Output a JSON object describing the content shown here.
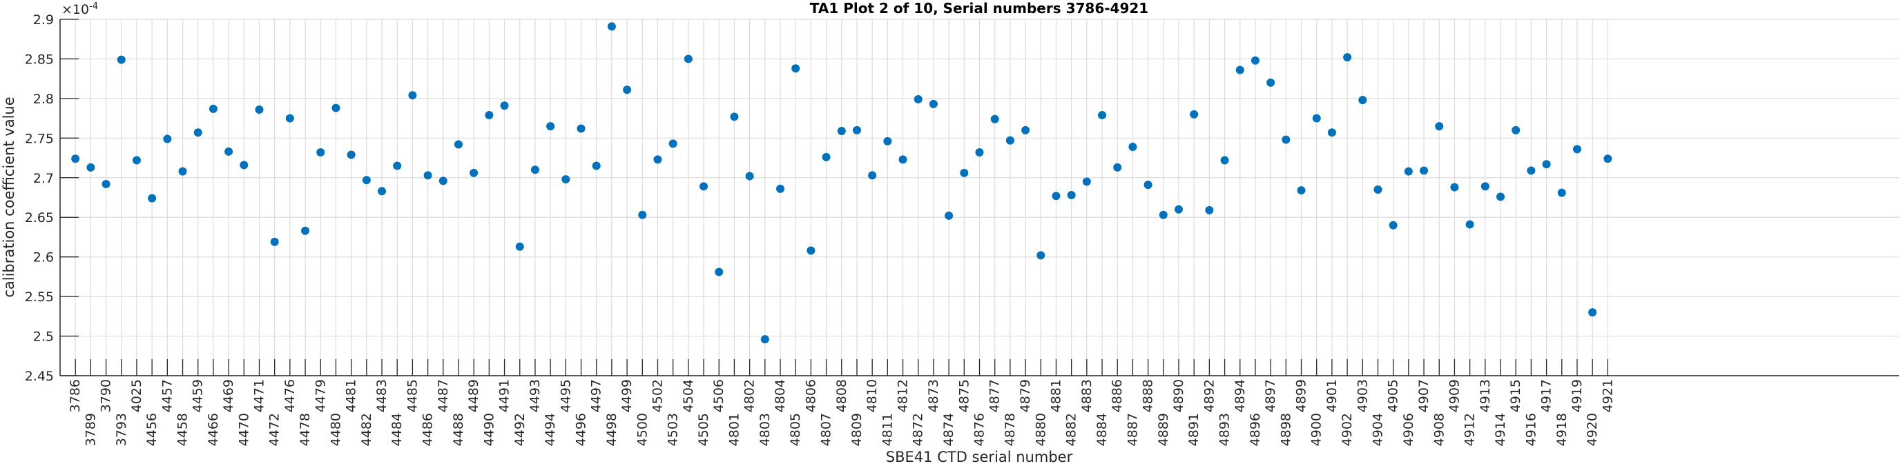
{
  "chart_data": {
    "type": "scatter",
    "title": "TA1 Plot 2 of 10, Serial numbers 3786-4921",
    "xlabel": "SBE41 CTD serial number",
    "ylabel": "calibration coefficient value",
    "y_exponent_label": "×10",
    "y_exponent_power": "-4",
    "xlim": [
      0,
      120
    ],
    "ylim": [
      2.45,
      2.9
    ],
    "yticks": [
      "2.45",
      "2.5",
      "2.55",
      "2.6",
      "2.65",
      "2.7",
      "2.75",
      "2.8",
      "2.85",
      "2.9"
    ],
    "grid": true,
    "marker_color": "#0072BD",
    "categories": [
      "3786",
      "3789",
      "3790",
      "3793",
      "4025",
      "4456",
      "4457",
      "4458",
      "4459",
      "4466",
      "4469",
      "4470",
      "4471",
      "4472",
      "4476",
      "4478",
      "4479",
      "4480",
      "4481",
      "4482",
      "4483",
      "4484",
      "4485",
      "4486",
      "4487",
      "4488",
      "4489",
      "4490",
      "4491",
      "4492",
      "4493",
      "4494",
      "4495",
      "4496",
      "4497",
      "4498",
      "4499",
      "4500",
      "4502",
      "4503",
      "4504",
      "4505",
      "4506",
      "4801",
      "4802",
      "4803",
      "4804",
      "4805",
      "4806",
      "4807",
      "4808",
      "4809",
      "4810",
      "4811",
      "4812",
      "4872",
      "4873",
      "4874",
      "4875",
      "4876",
      "4877",
      "4878",
      "4879",
      "4880",
      "4881",
      "4882",
      "4883",
      "4884",
      "4886",
      "4887",
      "4888",
      "4889",
      "4890",
      "4891",
      "4892",
      "4893",
      "4894",
      "4896",
      "4897",
      "4898",
      "4899",
      "4900",
      "4901",
      "4902",
      "4903",
      "4904",
      "4905",
      "4906",
      "4907",
      "4908",
      "4909",
      "4912",
      "4913",
      "4914",
      "4915",
      "4916",
      "4917",
      "4918",
      "4919",
      "4920",
      "4921"
    ],
    "values": [
      2.724,
      2.713,
      2.692,
      2.849,
      2.722,
      2.674,
      2.749,
      2.708,
      2.757,
      2.787,
      2.733,
      2.716,
      2.786,
      2.619,
      2.775,
      2.633,
      2.732,
      2.788,
      2.729,
      2.697,
      2.683,
      2.715,
      2.804,
      2.703,
      2.696,
      2.742,
      2.706,
      2.779,
      2.791,
      2.613,
      2.71,
      2.765,
      2.698,
      2.762,
      2.715,
      2.891,
      2.811,
      2.653,
      2.723,
      2.743,
      2.85,
      2.689,
      2.581,
      2.777,
      2.702,
      2.496,
      2.686,
      2.838,
      2.608,
      2.726,
      2.759,
      2.76,
      2.703,
      2.746,
      2.723,
      2.799,
      2.793,
      2.652,
      2.706,
      2.732,
      2.774,
      2.747,
      2.76,
      2.602,
      2.677,
      2.678,
      2.695,
      2.779,
      2.713,
      2.739,
      2.691,
      2.653,
      2.66,
      2.78,
      2.659,
      2.722,
      2.836,
      2.848,
      2.82,
      2.748,
      2.684,
      2.775,
      2.757,
      2.852,
      2.798,
      2.685,
      2.64,
      2.708,
      2.709,
      2.765,
      2.688,
      2.641,
      2.689,
      2.676,
      2.76,
      2.709,
      2.717,
      2.681,
      2.736,
      2.53,
      2.724
    ]
  }
}
